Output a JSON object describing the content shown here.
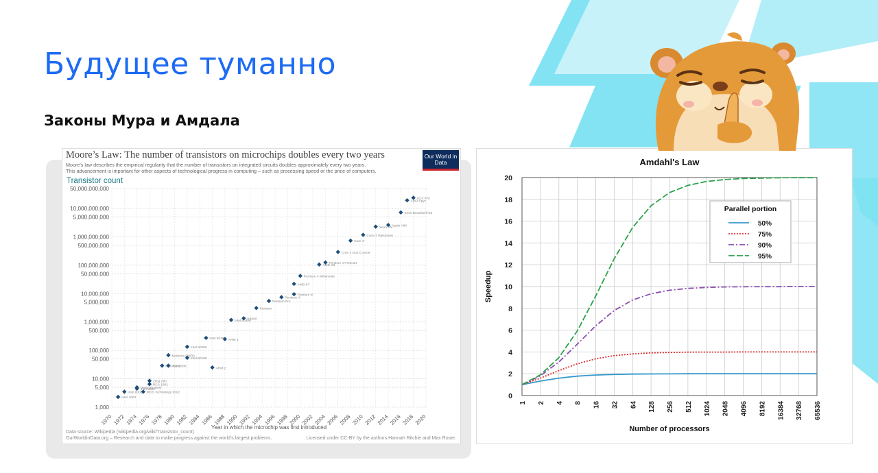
{
  "slide": {
    "title": "Будущее туманно",
    "subtitle": "Законы Мура и Амдала"
  },
  "colors": {
    "title_blue": "#1d6bf3",
    "deco_cyan": "#7de2f2",
    "moore_point": "#1f4e79",
    "amdahl_50": "#3399cc",
    "amdahl_75": "#e03030",
    "amdahl_90": "#8a4fb0",
    "amdahl_95": "#2aa14a"
  },
  "icons": {
    "mascot": "hamster-shush-icon",
    "owid_logo": "our-world-in-data-logo"
  },
  "moore": {
    "title": "Moore’s Law: The number of transistors on microchips doubles every two years",
    "description_line1": "Moore's law describes the empirical regularity that the number of transistors on integrated circuits doubles approximately every two years.",
    "description_line2": "This advancement is important for other aspects of technological progress in computing – such as processing speed or the price of computers.",
    "logo_text": "Our World in Data",
    "footer_source": "Data source: Wikipedia (wikipedia.org/wiki/Transistor_count)",
    "footer_site": "OurWorldinData.org – Research and data to make progress against the world's largest problems.",
    "footer_license": "Licensed under CC-BY by the authors Hannah Ritchie and Max Roser."
  },
  "amdahl": {},
  "chart_data": [
    {
      "type": "scatter",
      "title": "Moore’s Law: The number of transistors on microchips doubles every two years",
      "ylabel": "Transistor count",
      "xlabel": "Year in which the microchip was first introduced",
      "yscale": "log",
      "ylim": [
        1000,
        50000000000
      ],
      "xlim": [
        1970,
        2020
      ],
      "x_ticks": [
        "1970",
        "1972",
        "1974",
        "1976",
        "1978",
        "1980",
        "1982",
        "1984",
        "1986",
        "1988",
        "1990",
        "1992",
        "1994",
        "1996",
        "1998",
        "2000",
        "2002",
        "2004",
        "2006",
        "2008",
        "2010",
        "2012",
        "2014",
        "2016",
        "2018",
        "2020"
      ],
      "y_ticks": [
        {
          "value": 1000,
          "label": "1,000"
        },
        {
          "value": 5000,
          "label": "5,000"
        },
        {
          "value": 10000,
          "label": "10,000"
        },
        {
          "value": 50000,
          "label": "50,000"
        },
        {
          "value": 100000,
          "label": "100,000"
        },
        {
          "value": 500000,
          "label": "500,000"
        },
        {
          "value": 1000000,
          "label": "1,000,000"
        },
        {
          "value": 5000000,
          "label": "5,000,000"
        },
        {
          "value": 10000000,
          "label": "10,000,000"
        },
        {
          "value": 50000000,
          "label": "50,000,000"
        },
        {
          "value": 100000000,
          "label": "100,000,000"
        },
        {
          "value": 500000000,
          "label": "500,000,000"
        },
        {
          "value": 1000000000,
          "label": "1,000,000,000"
        },
        {
          "value": 5000000000,
          "label": "5,000,000,000"
        },
        {
          "value": 10000000000,
          "label": "10,000,000,000"
        },
        {
          "value": 50000000000,
          "label": "50,000,000,000"
        }
      ],
      "points": [
        {
          "x": 1971,
          "y": 2300,
          "label": "Intel 4004"
        },
        {
          "x": 1972,
          "y": 3500,
          "label": "Intel 8008"
        },
        {
          "x": 1974,
          "y": 4500,
          "label": "Intel 8080"
        },
        {
          "x": 1974,
          "y": 5000,
          "label": "Motorola 6800"
        },
        {
          "x": 1975,
          "y": 3500,
          "label": "MOS Technology 6502"
        },
        {
          "x": 1976,
          "y": 6500,
          "label": "RCA 1802"
        },
        {
          "x": 1976,
          "y": 8500,
          "label": "Zilog Z80"
        },
        {
          "x": 1978,
          "y": 29000,
          "label": "Intel 8086"
        },
        {
          "x": 1979,
          "y": 29000,
          "label": "Intel 8088"
        },
        {
          "x": 1979,
          "y": 68000,
          "label": "Motorola 68000"
        },
        {
          "x": 1982,
          "y": 134000,
          "label": "Intel 80286"
        },
        {
          "x": 1982,
          "y": 55000,
          "label": "Intel 80186"
        },
        {
          "x": 1985,
          "y": 275000,
          "label": "Intel 80386"
        },
        {
          "x": 1986,
          "y": 25000,
          "label": "ARM 2"
        },
        {
          "x": 1988,
          "y": 250000,
          "label": "ARM 3"
        },
        {
          "x": 1989,
          "y": 1180000,
          "label": "Intel 80486"
        },
        {
          "x": 1991,
          "y": 1350000,
          "label": "R4000"
        },
        {
          "x": 1993,
          "y": 3100000,
          "label": "Pentium"
        },
        {
          "x": 1995,
          "y": 5500000,
          "label": "Pentium Pro"
        },
        {
          "x": 1997,
          "y": 7500000,
          "label": "Pentium II"
        },
        {
          "x": 1999,
          "y": 9500000,
          "label": "Pentium III"
        },
        {
          "x": 1999,
          "y": 22000000,
          "label": "AMD K7"
        },
        {
          "x": 2000,
          "y": 42000000,
          "label": "Pentium 4 Willamette"
        },
        {
          "x": 2003,
          "y": 105900000,
          "label": "AMD K8"
        },
        {
          "x": 2004,
          "y": 125000000,
          "label": "Pentium 4 Prescott"
        },
        {
          "x": 2006,
          "y": 291000000,
          "label": "Core 2 Duo Conroe"
        },
        {
          "x": 2008,
          "y": 731000000,
          "label": "Core i7"
        },
        {
          "x": 2010,
          "y": 1170000000,
          "label": "Core i7 Westmere"
        },
        {
          "x": 2012,
          "y": 2270000000,
          "label": "Xeon Phi"
        },
        {
          "x": 2014,
          "y": 2600000000,
          "label": "Apple A8X"
        },
        {
          "x": 2016,
          "y": 7200000000,
          "label": "Xeon Broadwell-E5"
        },
        {
          "x": 2017,
          "y": 19200000000,
          "label": "AMD Epyc"
        },
        {
          "x": 2018,
          "y": 23600000000,
          "label": "GC2 IPU"
        }
      ]
    },
    {
      "type": "line",
      "title": "Amdahl's Law",
      "xlabel": "Number of processors",
      "ylabel": "Speedup",
      "xscale": "log2",
      "x": [
        1,
        2,
        4,
        8,
        16,
        32,
        64,
        128,
        256,
        512,
        1024,
        2048,
        4096,
        8192,
        16384,
        32768,
        65536
      ],
      "x_tick_labels": [
        "1",
        "2",
        "4",
        "8",
        "16",
        "32",
        "64",
        "128",
        "256",
        "512",
        "1024",
        "2048",
        "4096",
        "8192",
        "16384",
        "32768",
        "65536"
      ],
      "ylim": [
        0,
        20
      ],
      "y_ticks": [
        0,
        2,
        4,
        6,
        8,
        10,
        12,
        14,
        16,
        18,
        20
      ],
      "legend_title": "Parallel portion",
      "legend_position": "upper-right",
      "grid": true,
      "series": [
        {
          "name": "50%",
          "values": [
            1,
            1.33,
            1.6,
            1.78,
            1.88,
            1.94,
            1.97,
            1.98,
            1.99,
            2,
            2,
            2,
            2,
            2,
            2,
            2,
            2
          ]
        },
        {
          "name": "75%",
          "values": [
            1,
            1.6,
            2.29,
            2.91,
            3.37,
            3.66,
            3.82,
            3.91,
            3.95,
            3.98,
            3.99,
            3.99,
            4,
            4,
            4,
            4,
            4
          ]
        },
        {
          "name": "90%",
          "values": [
            1,
            1.82,
            3.08,
            4.71,
            6.4,
            7.8,
            8.77,
            9.34,
            9.66,
            9.83,
            9.91,
            9.96,
            9.98,
            9.99,
            9.99,
            10,
            10
          ]
        },
        {
          "name": "95%",
          "values": [
            1,
            1.9,
            3.48,
            5.93,
            9.14,
            12.55,
            15.42,
            17.41,
            18.62,
            19.28,
            19.64,
            19.82,
            19.91,
            19.95,
            19.98,
            19.99,
            19.99
          ]
        }
      ]
    }
  ]
}
